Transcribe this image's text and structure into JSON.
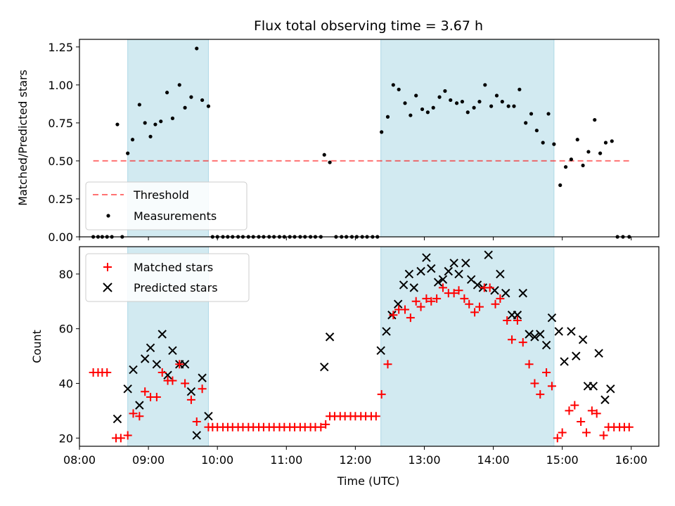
{
  "chart_data": [
    {
      "type": "scatter",
      "title": "Flux total observing time = 3.67 h",
      "xlabel": "",
      "ylabel": "Matched/Predicted stars",
      "xlim": [
        8.0,
        16.4
      ],
      "ylim": [
        0.0,
        1.3
      ],
      "yticks": [
        0.0,
        0.25,
        0.5,
        0.75,
        1.0,
        1.25
      ],
      "ytick_labels": [
        "0.00",
        "0.25",
        "0.50",
        "0.75",
        "1.00",
        "1.25"
      ],
      "shaded_intervals": [
        [
          8.7,
          9.87
        ],
        [
          12.37,
          14.88
        ]
      ],
      "shade_color": "#add8e6",
      "threshold": {
        "name": "Threshold",
        "value": 0.5,
        "x_range": [
          8.2,
          15.97
        ],
        "color": "#ff0000"
      },
      "series": [
        {
          "name": "Measurements",
          "color": "#000000",
          "marker": "dot",
          "points": [
            [
              8.2,
              0
            ],
            [
              8.27,
              0
            ],
            [
              8.33,
              0
            ],
            [
              8.4,
              0
            ],
            [
              8.47,
              0
            ],
            [
              8.55,
              0.74
            ],
            [
              8.62,
              0
            ],
            [
              8.7,
              0.55
            ],
            [
              8.77,
              0.64
            ],
            [
              8.87,
              0.87
            ],
            [
              8.95,
              0.75
            ],
            [
              9.03,
              0.66
            ],
            [
              9.1,
              0.74
            ],
            [
              9.18,
              0.76
            ],
            [
              9.27,
              0.95
            ],
            [
              9.35,
              0.78
            ],
            [
              9.45,
              1.0
            ],
            [
              9.53,
              0.85
            ],
            [
              9.62,
              0.92
            ],
            [
              9.7,
              1.24
            ],
            [
              9.78,
              0.9
            ],
            [
              9.87,
              0.86
            ],
            [
              9.93,
              0
            ],
            [
              10.0,
              0
            ],
            [
              10.08,
              0
            ],
            [
              10.15,
              0
            ],
            [
              10.22,
              0
            ],
            [
              10.3,
              0
            ],
            [
              10.37,
              0
            ],
            [
              10.45,
              0
            ],
            [
              10.52,
              0
            ],
            [
              10.6,
              0
            ],
            [
              10.67,
              0
            ],
            [
              10.75,
              0
            ],
            [
              10.82,
              0
            ],
            [
              10.9,
              0
            ],
            [
              10.97,
              0
            ],
            [
              11.05,
              0
            ],
            [
              11.12,
              0
            ],
            [
              11.2,
              0
            ],
            [
              11.27,
              0
            ],
            [
              11.35,
              0
            ],
            [
              11.42,
              0
            ],
            [
              11.5,
              0
            ],
            [
              11.55,
              0.54
            ],
            [
              11.63,
              0.49
            ],
            [
              11.72,
              0
            ],
            [
              11.8,
              0
            ],
            [
              11.87,
              0
            ],
            [
              11.95,
              0
            ],
            [
              12.02,
              0
            ],
            [
              12.1,
              0
            ],
            [
              12.17,
              0
            ],
            [
              12.25,
              0
            ],
            [
              12.32,
              0
            ],
            [
              12.38,
              0.69
            ],
            [
              12.47,
              0.79
            ],
            [
              12.55,
              1.0
            ],
            [
              12.63,
              0.97
            ],
            [
              12.72,
              0.88
            ],
            [
              12.8,
              0.8
            ],
            [
              12.88,
              0.93
            ],
            [
              12.97,
              0.84
            ],
            [
              13.05,
              0.82
            ],
            [
              13.13,
              0.85
            ],
            [
              13.22,
              0.92
            ],
            [
              13.3,
              0.96
            ],
            [
              13.38,
              0.9
            ],
            [
              13.47,
              0.88
            ],
            [
              13.55,
              0.89
            ],
            [
              13.63,
              0.82
            ],
            [
              13.72,
              0.85
            ],
            [
              13.8,
              0.89
            ],
            [
              13.88,
              1.0
            ],
            [
              13.97,
              0.86
            ],
            [
              14.05,
              0.93
            ],
            [
              14.13,
              0.89
            ],
            [
              14.22,
              0.86
            ],
            [
              14.3,
              0.86
            ],
            [
              14.38,
              0.97
            ],
            [
              14.47,
              0.75
            ],
            [
              14.55,
              0.81
            ],
            [
              14.63,
              0.7
            ],
            [
              14.72,
              0.62
            ],
            [
              14.8,
              0.81
            ],
            [
              14.88,
              0.61
            ],
            [
              14.97,
              0.34
            ],
            [
              15.05,
              0.46
            ],
            [
              15.13,
              0.51
            ],
            [
              15.22,
              0.64
            ],
            [
              15.3,
              0.47
            ],
            [
              15.38,
              0.56
            ],
            [
              15.47,
              0.77
            ],
            [
              15.55,
              0.55
            ],
            [
              15.63,
              0.62
            ],
            [
              15.72,
              0.63
            ],
            [
              15.8,
              0
            ],
            [
              15.88,
              0
            ],
            [
              15.97,
              0
            ]
          ]
        }
      ],
      "legend": {
        "position": "lower-left",
        "entries": [
          "Threshold",
          "Measurements"
        ]
      }
    },
    {
      "type": "scatter",
      "title": "",
      "xlabel": "Time (UTC)",
      "ylabel": "Count",
      "xlim": [
        8.0,
        16.4
      ],
      "ylim": [
        17,
        90
      ],
      "yticks": [
        20,
        40,
        60,
        80
      ],
      "ytick_labels": [
        "20",
        "40",
        "60",
        "80"
      ],
      "xticks": [
        8,
        9,
        10,
        11,
        12,
        13,
        14,
        15,
        16
      ],
      "xtick_labels": [
        "08:00",
        "09:00",
        "10:00",
        "11:00",
        "12:00",
        "13:00",
        "14:00",
        "15:00",
        "16:00"
      ],
      "shaded_intervals": [
        [
          8.7,
          9.87
        ],
        [
          12.37,
          14.88
        ]
      ],
      "shade_color": "#add8e6",
      "series": [
        {
          "name": "Matched stars",
          "color": "#ff0000",
          "marker": "plus",
          "points": [
            [
              8.2,
              44
            ],
            [
              8.27,
              44
            ],
            [
              8.33,
              44
            ],
            [
              8.4,
              44
            ],
            [
              8.53,
              20
            ],
            [
              8.6,
              20
            ],
            [
              8.7,
              21
            ],
            [
              8.78,
              29
            ],
            [
              8.87,
              28
            ],
            [
              8.95,
              37
            ],
            [
              9.03,
              35
            ],
            [
              9.12,
              35
            ],
            [
              9.2,
              44
            ],
            [
              9.28,
              41
            ],
            [
              9.35,
              41
            ],
            [
              9.45,
              47
            ],
            [
              9.53,
              40
            ],
            [
              9.62,
              34
            ],
            [
              9.7,
              26
            ],
            [
              9.78,
              38
            ],
            [
              9.87,
              24
            ],
            [
              9.93,
              24
            ],
            [
              10.0,
              24
            ],
            [
              10.08,
              24
            ],
            [
              10.15,
              24
            ],
            [
              10.22,
              24
            ],
            [
              10.3,
              24
            ],
            [
              10.37,
              24
            ],
            [
              10.45,
              24
            ],
            [
              10.52,
              24
            ],
            [
              10.6,
              24
            ],
            [
              10.67,
              24
            ],
            [
              10.75,
              24
            ],
            [
              10.82,
              24
            ],
            [
              10.9,
              24
            ],
            [
              10.97,
              24
            ],
            [
              11.05,
              24
            ],
            [
              11.12,
              24
            ],
            [
              11.2,
              24
            ],
            [
              11.27,
              24
            ],
            [
              11.35,
              24
            ],
            [
              11.42,
              24
            ],
            [
              11.5,
              24
            ],
            [
              11.57,
              25
            ],
            [
              11.63,
              28
            ],
            [
              11.7,
              28
            ],
            [
              11.78,
              28
            ],
            [
              11.85,
              28
            ],
            [
              11.93,
              28
            ],
            [
              12.0,
              28
            ],
            [
              12.08,
              28
            ],
            [
              12.15,
              28
            ],
            [
              12.23,
              28
            ],
            [
              12.3,
              28
            ],
            [
              12.38,
              36
            ],
            [
              12.47,
              47
            ],
            [
              12.55,
              65
            ],
            [
              12.63,
              67
            ],
            [
              12.72,
              67
            ],
            [
              12.8,
              64
            ],
            [
              12.88,
              70
            ],
            [
              12.95,
              68
            ],
            [
              13.03,
              71
            ],
            [
              13.1,
              70
            ],
            [
              13.18,
              71
            ],
            [
              13.27,
              75
            ],
            [
              13.35,
              73
            ],
            [
              13.43,
              73
            ],
            [
              13.5,
              74
            ],
            [
              13.58,
              71
            ],
            [
              13.65,
              69
            ],
            [
              13.73,
              66
            ],
            [
              13.8,
              68
            ],
            [
              13.87,
              75
            ],
            [
              13.95,
              75
            ],
            [
              14.03,
              69
            ],
            [
              14.1,
              71
            ],
            [
              14.2,
              63
            ],
            [
              14.27,
              56
            ],
            [
              14.35,
              63
            ],
            [
              14.43,
              55
            ],
            [
              14.52,
              47
            ],
            [
              14.6,
              40
            ],
            [
              14.68,
              36
            ],
            [
              14.77,
              44
            ],
            [
              14.85,
              39
            ],
            [
              14.93,
              20
            ],
            [
              15.0,
              22
            ],
            [
              15.1,
              30
            ],
            [
              15.18,
              32
            ],
            [
              15.27,
              26
            ],
            [
              15.35,
              22
            ],
            [
              15.43,
              30
            ],
            [
              15.5,
              29
            ],
            [
              15.6,
              21
            ],
            [
              15.67,
              24
            ],
            [
              15.75,
              24
            ],
            [
              15.83,
              24
            ],
            [
              15.9,
              24
            ],
            [
              15.97,
              24
            ]
          ]
        },
        {
          "name": "Predicted stars",
          "color": "#000000",
          "marker": "x",
          "points": [
            [
              8.55,
              27
            ],
            [
              8.7,
              38
            ],
            [
              8.78,
              45
            ],
            [
              8.87,
              32
            ],
            [
              8.95,
              49
            ],
            [
              9.03,
              53
            ],
            [
              9.12,
              47
            ],
            [
              9.2,
              58
            ],
            [
              9.28,
              43
            ],
            [
              9.35,
              52
            ],
            [
              9.45,
              47
            ],
            [
              9.53,
              47
            ],
            [
              9.62,
              37
            ],
            [
              9.7,
              21
            ],
            [
              9.78,
              42
            ],
            [
              9.87,
              28
            ],
            [
              11.55,
              46
            ],
            [
              11.63,
              57
            ],
            [
              12.37,
              52
            ],
            [
              12.45,
              59
            ],
            [
              12.53,
              65
            ],
            [
              12.62,
              69
            ],
            [
              12.7,
              76
            ],
            [
              12.78,
              80
            ],
            [
              12.85,
              75
            ],
            [
              12.95,
              81
            ],
            [
              13.03,
              86
            ],
            [
              13.1,
              82
            ],
            [
              13.2,
              77
            ],
            [
              13.27,
              78
            ],
            [
              13.35,
              81
            ],
            [
              13.43,
              84
            ],
            [
              13.5,
              80
            ],
            [
              13.6,
              84
            ],
            [
              13.68,
              78
            ],
            [
              13.77,
              76
            ],
            [
              13.85,
              75
            ],
            [
              13.93,
              87
            ],
            [
              14.02,
              74
            ],
            [
              14.1,
              80
            ],
            [
              14.18,
              73
            ],
            [
              14.27,
              65
            ],
            [
              14.35,
              65
            ],
            [
              14.43,
              73
            ],
            [
              14.52,
              58
            ],
            [
              14.6,
              57
            ],
            [
              14.68,
              58
            ],
            [
              14.77,
              54
            ],
            [
              14.85,
              64
            ],
            [
              14.95,
              59
            ],
            [
              15.03,
              48
            ],
            [
              15.13,
              59
            ],
            [
              15.2,
              50
            ],
            [
              15.3,
              56
            ],
            [
              15.37,
              39
            ],
            [
              15.45,
              39
            ],
            [
              15.53,
              51
            ],
            [
              15.62,
              34
            ],
            [
              15.7,
              38
            ]
          ]
        }
      ],
      "legend": {
        "position": "top-left",
        "entries": [
          "Matched stars",
          "Predicted stars"
        ]
      }
    }
  ]
}
